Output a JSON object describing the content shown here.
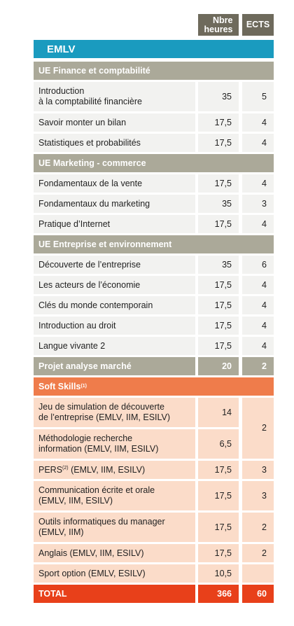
{
  "header": {
    "hours": "Nbre\nheures",
    "ects": "ECTS"
  },
  "program": "EMLV",
  "sections": [
    {
      "title": "UE Finance et comptabilité",
      "rows": [
        {
          "label": "Introduction\nà la comptabilité financière",
          "hours": "35",
          "ects": "5"
        },
        {
          "label": "Savoir monter un bilan",
          "hours": "17,5",
          "ects": "4"
        },
        {
          "label": "Statistiques et probabilités",
          "hours": "17,5",
          "ects": "4"
        }
      ]
    },
    {
      "title": "UE Marketing - commerce",
      "rows": [
        {
          "label": "Fondamentaux de la vente",
          "hours": "17,5",
          "ects": "4"
        },
        {
          "label": "Fondamentaux du marketing",
          "hours": "35",
          "ects": "3"
        },
        {
          "label": "Pratique d’Internet",
          "hours": "17,5",
          "ects": "4"
        }
      ]
    },
    {
      "title": "UE Entreprise et environnement",
      "rows": [
        {
          "label": "Découverte de l’entreprise",
          "hours": "35",
          "ects": "6"
        },
        {
          "label": "Les acteurs de l’économie",
          "hours": "17,5",
          "ects": "4"
        },
        {
          "label": "Clés du monde contemporain",
          "hours": "17,5",
          "ects": "4"
        },
        {
          "label": "Introduction au droit",
          "hours": "17,5",
          "ects": "4"
        },
        {
          "label": "Langue vivante 2",
          "hours": "17,5",
          "ects": "4"
        }
      ]
    }
  ],
  "projet": {
    "label": "Projet analyse marché",
    "hours": "20",
    "ects": "2"
  },
  "soft_skills": {
    "title": "Soft Skills",
    "note": "(1)",
    "shared_ects": "2",
    "rows": [
      {
        "label": "Jeu de simulation de découverte\nde l’entreprise (EMLV, IIM, ESILV)",
        "hours": "14"
      },
      {
        "label": "Méthodologie recherche\ninformation (EMLV, IIM, ESILV)",
        "hours": "6,5"
      },
      {
        "label": "PERS",
        "note": "(2)",
        "suffix": " (EMLV, IIM, ESILV)",
        "hours": "17,5",
        "ects": "3"
      },
      {
        "label": "Communication écrite et orale\n(EMLV, IIM, ESILV)",
        "hours": "17,5",
        "ects": "3"
      },
      {
        "label": "Outils informatiques du manager\n(EMLV, IIM)",
        "hours": "17,5",
        "ects": "2"
      },
      {
        "label": "Anglais (EMLV, IIM, ESILV)",
        "hours": "17,5",
        "ects": "2"
      },
      {
        "label": "Sport option (EMLV, ESILV)",
        "hours": "10,5"
      }
    ]
  },
  "total": {
    "label": "TOTAL",
    "hours": "366",
    "ects": "60"
  }
}
